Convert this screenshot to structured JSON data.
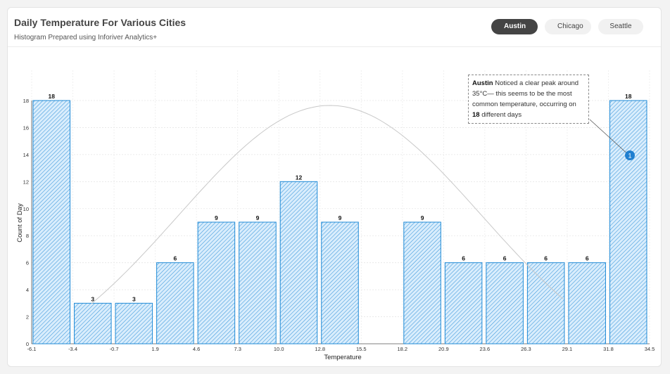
{
  "header": {
    "title": "Daily Temperature For Various Cities",
    "subtitle": "Histogram Prepared using Inforiver Analytics+"
  },
  "tabs": [
    {
      "label": "Austin",
      "active": true
    },
    {
      "label": "Chicago",
      "active": false
    },
    {
      "label": "Seattle",
      "active": false
    }
  ],
  "annotation": {
    "city": "Austin",
    "text_a": " Noticed a clear peak around 35°C— this seems to be the most common temperature, occurring on ",
    "count": "18",
    "text_b": " different days",
    "marker": "1"
  },
  "colors": {
    "bar_fill": "#d6ebfb",
    "bar_stroke": "#1f8ad6",
    "curve": "#c8c8c8",
    "marker": "#1f7fd0"
  },
  "chart_data": {
    "type": "bar",
    "title": "",
    "xlabel": "Temperature",
    "ylabel": "Count of Day",
    "ylim": [
      0,
      18
    ],
    "yticks": [
      0,
      2,
      4,
      6,
      8,
      10,
      12,
      14,
      16,
      18
    ],
    "x_edges": [
      "-6.1",
      "-3.4",
      "-0.7",
      "1.9",
      "4.6",
      "7.3",
      "10.0",
      "12.8",
      "15.5",
      "18.2",
      "20.9",
      "23.6",
      "26.3",
      "29.1",
      "31.8",
      "34.5"
    ],
    "values": [
      18,
      3,
      3,
      6,
      9,
      9,
      12,
      9,
      null,
      9,
      6,
      6,
      6,
      6,
      18
    ],
    "labels": [
      "18",
      "3",
      "3",
      "6",
      "9",
      "9",
      "12",
      "9",
      "",
      "9",
      "6",
      "6",
      "6",
      "6",
      "18"
    ],
    "curve": "normal distribution overlay",
    "grid": true
  }
}
